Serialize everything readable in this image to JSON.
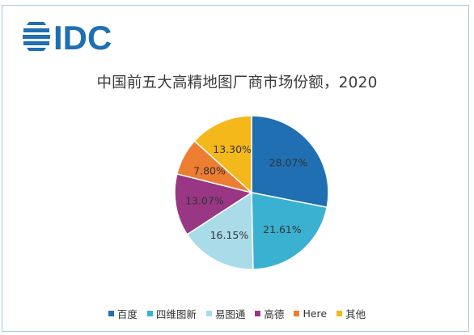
{
  "brand": {
    "logo_text": "IDC",
    "color": "#1f6fb2"
  },
  "chart_data": {
    "type": "pie",
    "title": "中国前五大高精地图厂商市场份额，2020",
    "start": "12 o'clock, clockwise",
    "slices": [
      {
        "name": "百度",
        "value": 28.07,
        "label": "28.07%",
        "color": "#1f6fb2"
      },
      {
        "name": "四维图新",
        "value": 21.61,
        "label": "21.61%",
        "color": "#3ab1d0"
      },
      {
        "name": "易图通",
        "value": 16.15,
        "label": "16.15%",
        "color": "#a9dbe9"
      },
      {
        "name": "高德",
        "value": 13.07,
        "label": "13.07%",
        "color": "#993784"
      },
      {
        "name": "Here",
        "value": 7.8,
        "label": "7.80%",
        "color": "#ed7d31"
      },
      {
        "name": "其他",
        "value": 13.3,
        "label": "13.30%",
        "color": "#f5b81a"
      }
    ],
    "legend_position": "bottom"
  }
}
